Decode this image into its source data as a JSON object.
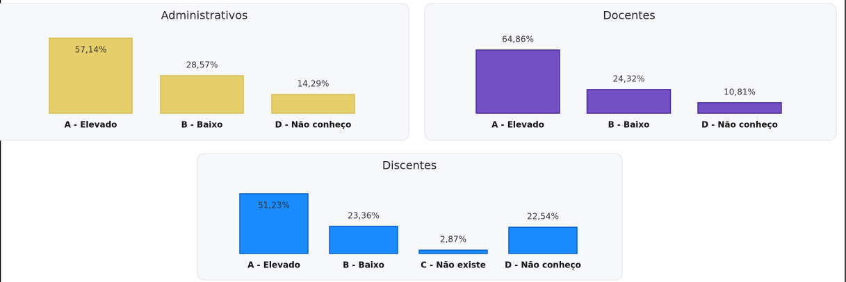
{
  "chart_data": [
    {
      "type": "bar",
      "title": "Administrativos",
      "categories": [
        "A - Elevado",
        "B - Baixo",
        "D - Não conheço"
      ],
      "values": [
        57.14,
        28.57,
        14.29
      ],
      "value_labels": [
        "57,14%",
        "28,57%",
        "14,29%"
      ],
      "color": "#e6cf6a"
    },
    {
      "type": "bar",
      "title": "Docentes",
      "categories": [
        "A - Elevado",
        "B - Baixo",
        "D - Não conheço"
      ],
      "values": [
        64.86,
        24.32,
        10.81
      ],
      "value_labels": [
        "64,86%",
        "24,32%",
        "10,81%"
      ],
      "color": "#7350c4"
    },
    {
      "type": "bar",
      "title": "Discentes",
      "categories": [
        "A - Elevado",
        "B - Baixo",
        "C - Não existe",
        "D - Não conheço"
      ],
      "values": [
        51.23,
        23.36,
        2.87,
        22.54
      ],
      "value_labels": [
        "51,23%",
        "23,36%",
        "2,87%",
        "22,54%"
      ],
      "color": "#1a8cff"
    }
  ]
}
